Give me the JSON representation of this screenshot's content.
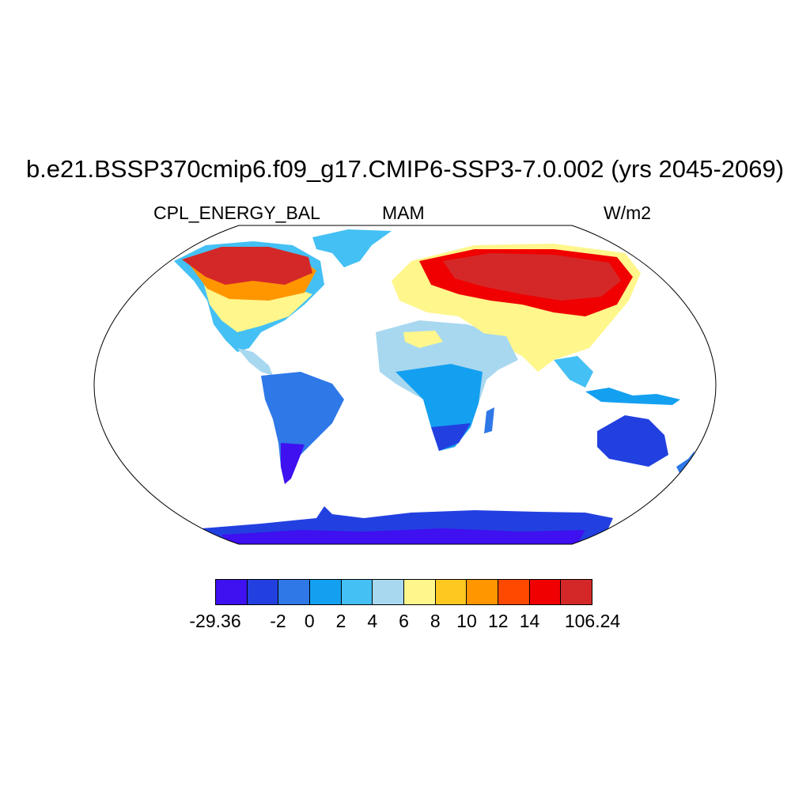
{
  "header": {
    "title": "b.e21.BSSP370cmip6.f09_g17.CMIP6-SSP3-7.0.002 (yrs 2045-2069)",
    "left_label": "CPL_ENERGY_BAL",
    "center_label": "MAM",
    "right_label": "W/m2"
  },
  "colorbar": {
    "colors": [
      "#3f10f0",
      "#2240e0",
      "#2e78e8",
      "#14a0f0",
      "#44c0f4",
      "#a8d8f0",
      "#fff68c",
      "#ffc820",
      "#ff9600",
      "#ff4800",
      "#f00000",
      "#d42828"
    ],
    "labels": [
      "-29.36",
      "-2",
      "0",
      "2",
      "4",
      "6",
      "8",
      "10",
      "12",
      "14",
      "106.24"
    ]
  }
}
